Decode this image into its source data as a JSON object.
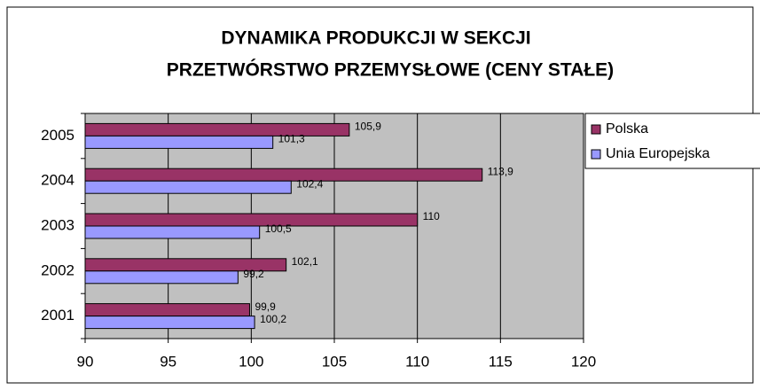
{
  "chart_data": {
    "type": "hbar",
    "title": [
      "DYNAMIKA PRODUKCJI W SEKCJI",
      "PRZETWÓRSTWO PRZEMYSŁOWE (CENY STAŁE)"
    ],
    "categories": [
      "2005",
      "2004",
      "2003",
      "2002",
      "2001"
    ],
    "series": [
      {
        "name": "Polska",
        "color": "#993366",
        "values": [
          105.9,
          113.9,
          110,
          102.1,
          99.9
        ],
        "value_labels": [
          "105,9",
          "113,9",
          "110",
          "102,1",
          "99,9"
        ]
      },
      {
        "name": "Unia Europejska",
        "color": "#9999ff",
        "values": [
          101.3,
          102.4,
          100.5,
          99.2,
          100.2
        ],
        "value_labels": [
          "101,3",
          "102,4",
          "100,5",
          "99,2",
          "100,2"
        ]
      }
    ],
    "xlim": [
      90,
      120
    ],
    "xticks": [
      90,
      95,
      100,
      105,
      110,
      115,
      120
    ],
    "grid": true,
    "legend": "right"
  }
}
